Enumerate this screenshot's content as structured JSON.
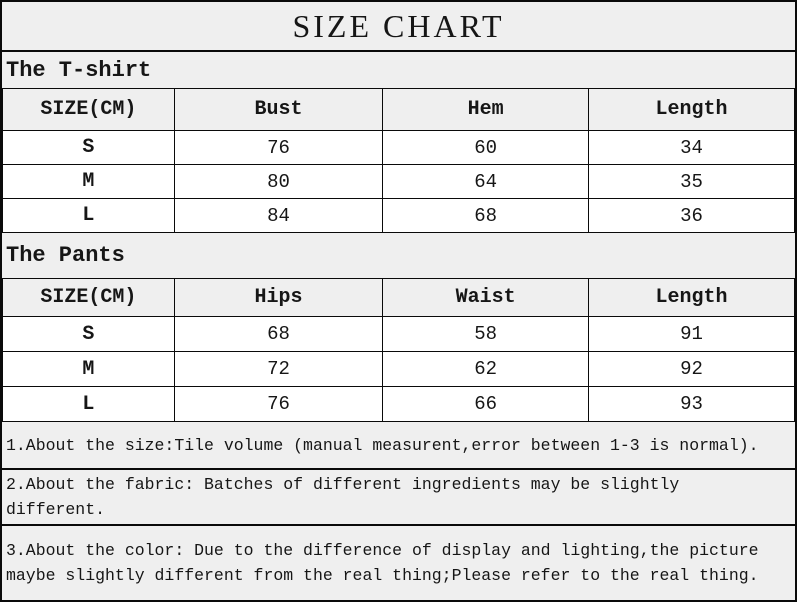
{
  "title": "SIZE CHART",
  "tshirt": {
    "label": "The T-shirt",
    "headers": [
      "SIZE(CM)",
      "Bust",
      "Hem",
      "Length"
    ],
    "rows": [
      {
        "size": "S",
        "values": [
          "76",
          "60",
          "34"
        ]
      },
      {
        "size": "M",
        "values": [
          "80",
          "64",
          "35"
        ]
      },
      {
        "size": "L",
        "values": [
          "84",
          "68",
          "36"
        ]
      }
    ]
  },
  "pants": {
    "label": "The Pants",
    "headers": [
      "SIZE(CM)",
      "Hips",
      "Waist",
      "Length"
    ],
    "rows": [
      {
        "size": "S",
        "values": [
          "68",
          "58",
          "91"
        ]
      },
      {
        "size": "M",
        "values": [
          "72",
          "62",
          "92"
        ]
      },
      {
        "size": "L",
        "values": [
          "76",
          "66",
          "93"
        ]
      }
    ]
  },
  "notes": [
    "1.About the size:Tile volume (manual measurent,error between 1-3 is normal).",
    "2.About the fabric: Batches of different ingredients may be slightly different.",
    "3.About the color: Due to the difference of display and lighting,the picture maybe slightly different from the real thing;Please refer to the real thing."
  ],
  "colors": {
    "background": "#efefef",
    "cell_background": "#ffffff",
    "border": "#0a0a0a",
    "text": "#161616"
  }
}
